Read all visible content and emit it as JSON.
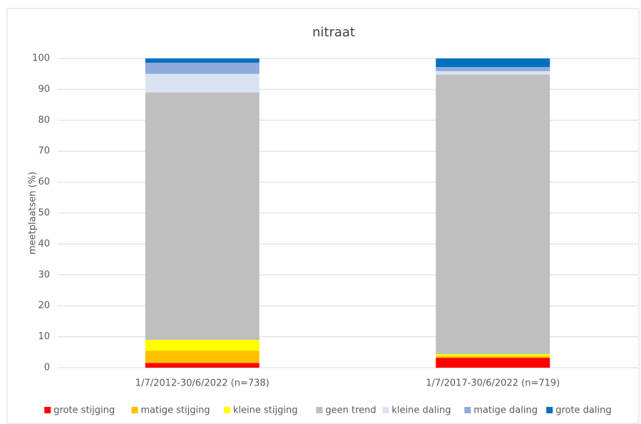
{
  "chart_data": {
    "type": "stacked-bar",
    "title": "nitraat",
    "y_label": "meetplaatsen (%)",
    "categories": [
      "1/7/2012-30/6/2022 (n=738)",
      "1/7/2017-30/6/2022 (n=719)"
    ],
    "series": [
      {
        "name": "grote stijging",
        "color": "#ff0000",
        "values": [
          1.5,
          3.2
        ]
      },
      {
        "name": "matige stijging",
        "color": "#ffc000",
        "values": [
          4.0,
          0.5
        ]
      },
      {
        "name": "kleine stijging",
        "color": "#ffff00",
        "values": [
          3.5,
          0.7
        ]
      },
      {
        "name": "geen trend",
        "color": "#bfbfbf",
        "values": [
          80.0,
          90.4
        ]
      },
      {
        "name": "kleine daling",
        "color": "#dae3f3",
        "values": [
          6.0,
          1.1
        ]
      },
      {
        "name": "matige daling",
        "color": "#8faadc",
        "values": [
          3.6,
          1.3
        ]
      },
      {
        "name": "grote daling",
        "color": "#0070c0",
        "values": [
          1.4,
          2.8
        ]
      }
    ],
    "ylim": [
      0,
      100
    ],
    "yticks": [
      0,
      10,
      20,
      30,
      40,
      50,
      60,
      70,
      80,
      90,
      100
    ],
    "grid": true
  }
}
